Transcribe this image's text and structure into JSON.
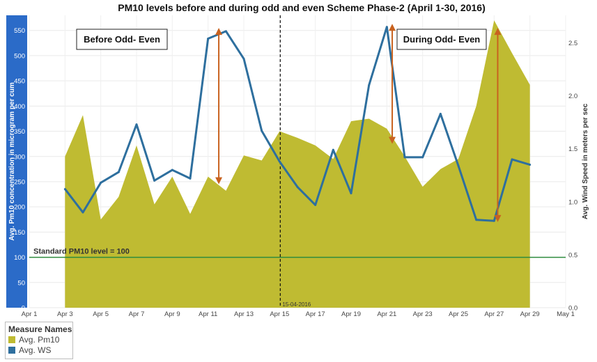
{
  "chart_data": {
    "type": "area",
    "title": "PM10 levels before and during odd and even Scheme Phase-2 (April 1-30, 2016)",
    "ylabel_left": "Avg. Pm10 concentration in microgram per cum",
    "ylabel_right": "Avg. Wind Speed in meters per sec",
    "y_ticks_left": [
      "0",
      "50",
      "100",
      "150",
      "200",
      "250",
      "300",
      "350",
      "400",
      "450",
      "500",
      "550"
    ],
    "y_ticks_right": [
      "0.0",
      "0.5",
      "1.0",
      "1.5",
      "2.0",
      "2.5"
    ],
    "ylim_left": [
      0,
      580
    ],
    "ylim_right": [
      0,
      2.76
    ],
    "x_ticks": [
      {
        "label": "Apr 1",
        "day": 1
      },
      {
        "label": "Apr 3",
        "day": 3
      },
      {
        "label": "Apr 5",
        "day": 5
      },
      {
        "label": "Apr 7",
        "day": 7
      },
      {
        "label": "Apr 9",
        "day": 9
      },
      {
        "label": "Apr 11",
        "day": 11
      },
      {
        "label": "Apr 13",
        "day": 13
      },
      {
        "label": "Apr 15",
        "day": 15
      },
      {
        "label": "Apr 17",
        "day": 17
      },
      {
        "label": "Apr 19",
        "day": 19
      },
      {
        "label": "Apr 21",
        "day": 21
      },
      {
        "label": "Apr 23",
        "day": 23
      },
      {
        "label": "Apr 25",
        "day": 25
      },
      {
        "label": "Apr 27",
        "day": 27
      },
      {
        "label": "Apr 29",
        "day": 29
      },
      {
        "label": "May 1",
        "day": 31
      }
    ],
    "xlim": [
      1,
      31
    ],
    "series": [
      {
        "name": "Avg. Pm10",
        "axis": "left",
        "color": "#bfbb32",
        "x": [
          3,
          4,
          5,
          6,
          7,
          8,
          9,
          10,
          11,
          12,
          13,
          14,
          15,
          16,
          17,
          18,
          19,
          20,
          21,
          22,
          23,
          24,
          25,
          26,
          27,
          28,
          29
        ],
        "values": [
          300,
          382,
          175,
          220,
          322,
          205,
          260,
          186,
          260,
          232,
          302,
          292,
          350,
          337,
          322,
          295,
          370,
          375,
          355,
          300,
          240,
          275,
          295,
          400,
          570,
          505,
          442
        ]
      },
      {
        "name": "Avg. WS",
        "axis": "right",
        "color": "#2e6f9e",
        "x": [
          3,
          4,
          5,
          6,
          7,
          8,
          9,
          10,
          11,
          12,
          13,
          14,
          15,
          16,
          17,
          18,
          19,
          20,
          21,
          22,
          23,
          24,
          25,
          26,
          27,
          28,
          29
        ],
        "values": [
          1.12,
          0.9,
          1.18,
          1.28,
          1.73,
          1.2,
          1.3,
          1.22,
          2.54,
          2.61,
          2.35,
          1.67,
          1.38,
          1.14,
          0.97,
          1.49,
          1.08,
          2.1,
          2.65,
          1.42,
          1.42,
          1.83,
          1.34,
          0.83,
          0.82,
          1.4,
          1.35
        ]
      }
    ],
    "reference_line": {
      "value": 100,
      "label": "Standard PM10 level = 100",
      "color": "#2e8b3e"
    },
    "divider": {
      "day": 15,
      "label": "15-04-2016"
    },
    "annotations": [
      {
        "text": "Before Odd- Even"
      },
      {
        "text": "During Odd- Even"
      }
    ],
    "arrows": [
      {
        "day": 11.6,
        "from_pm10": 555,
        "to_pm10": 245
      },
      {
        "day": 21.3,
        "from_pm10": 563,
        "to_pm10": 325
      },
      {
        "day": 27.2,
        "from_pm10": 555,
        "to_pm10": 170
      }
    ],
    "arrow_color": "#c8621f",
    "left_band_color": "#2b6bc8",
    "legend": {
      "title": "Measure Names",
      "items": [
        {
          "name": "Avg. Pm10",
          "color": "#bfbb32"
        },
        {
          "name": "Avg. WS",
          "color": "#2e6f9e"
        }
      ]
    }
  }
}
